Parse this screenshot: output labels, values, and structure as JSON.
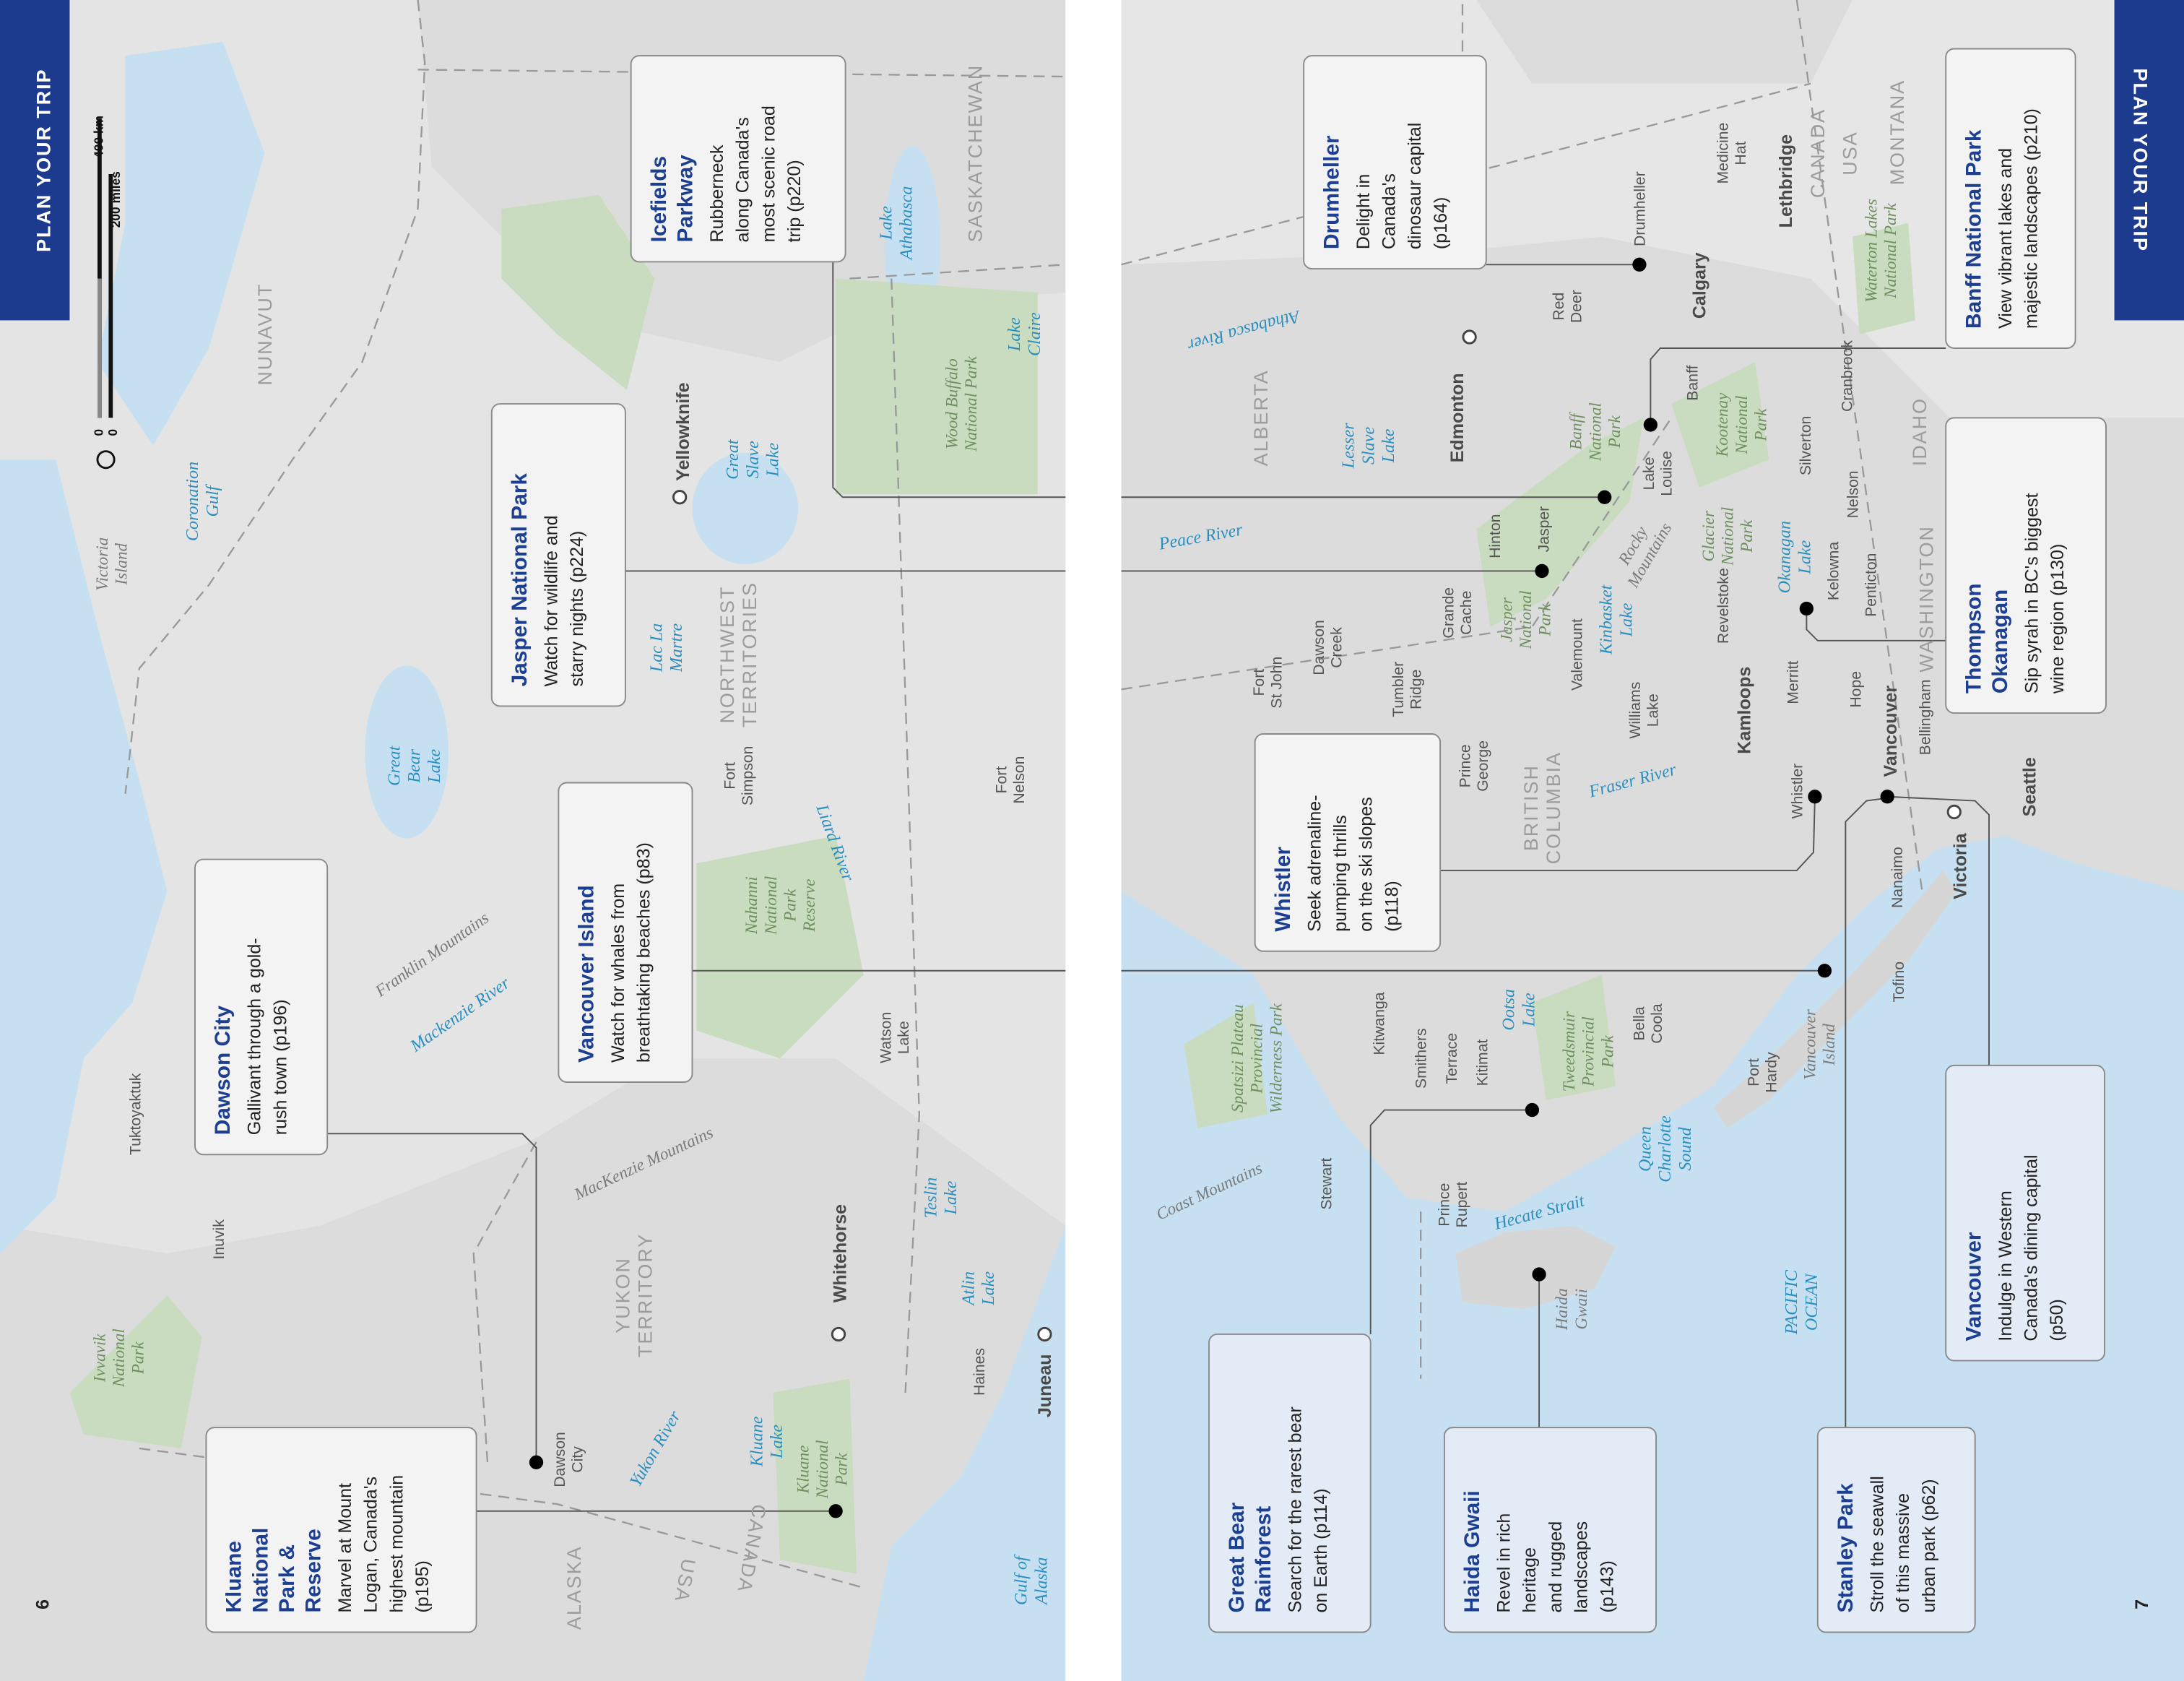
{
  "pages": [
    {
      "tab": "PLAN YOUR TRIP",
      "number": "6"
    },
    {
      "tab": "PLAN YOUR TRIP",
      "number": "7"
    }
  ],
  "scale": {
    "zero_km": "0",
    "km": "400 km",
    "zero_miles": "0",
    "miles": "200 miles"
  },
  "callouts": [
    {
      "title": [
        "Icefields",
        "Parkway"
      ],
      "text": [
        "Rubberneck",
        "along Canada's",
        "most scenic road",
        "trip (p220)"
      ]
    },
    {
      "title": [
        "Jasper National Park"
      ],
      "text": [
        "Watch for wildlife and",
        "starry nights (p224)"
      ]
    },
    {
      "title": [
        "Vancouver Island"
      ],
      "text": [
        "Watch for whales from",
        "breathtaking beaches (p83)"
      ]
    },
    {
      "title": [
        "Dawson City"
      ],
      "text": [
        "Gallivant through a gold-",
        "rush town (p196)"
      ]
    },
    {
      "title": [
        "Kluane",
        "National",
        "Park &",
        "Reserve"
      ],
      "text": [
        "Marvel at Mount",
        "Logan, Canada's",
        "highest mountain",
        "(p195)"
      ]
    },
    {
      "title": [
        "Drumheller"
      ],
      "text": [
        "Delight in",
        "Canada's",
        "dinosaur capital",
        "(p164)"
      ]
    },
    {
      "title": [
        "Banff National Park"
      ],
      "text": [
        "View vibrant lakes and",
        "majestic landscapes (p210)"
      ]
    },
    {
      "title": [
        "Thompson",
        "Okanagan"
      ],
      "text": [
        "Sip syrah in BC's biggest",
        "wine region (p130)"
      ]
    },
    {
      "title": [
        "Whistler"
      ],
      "text": [
        "Seek adrenaline-",
        "pumping thrills",
        "on the ski slopes",
        "(p118)"
      ]
    },
    {
      "title": [
        "Vancouver"
      ],
      "text": [
        "Indulge in Western",
        "Canada's dining capital",
        "(p50)"
      ]
    },
    {
      "title": [
        "Great Bear",
        "Rainforest"
      ],
      "text": [
        "Search for the rarest bear",
        "on Earth (p114)"
      ]
    },
    {
      "title": [
        "Haida Gwaii"
      ],
      "text": [
        "Revel in rich",
        "heritage",
        "and rugged",
        "landscapes",
        "(p143)"
      ]
    },
    {
      "title": [
        "Stanley Park"
      ],
      "text": [
        "Stroll the seawall",
        "of this massive",
        "urban park (p62)"
      ]
    }
  ],
  "places": [
    {
      "lines": [
        "Victoria",
        "Island"
      ]
    },
    {
      "lines": [
        "Coronation",
        "Gulf"
      ]
    },
    {
      "label": "NUNAVUT"
    },
    {
      "lines": [
        "Great",
        "Bear",
        "Lake"
      ]
    },
    {
      "label": "Franklin Mountains"
    },
    {
      "label": "Mackenzie River"
    },
    {
      "label": "Tuktoyaktuk"
    },
    {
      "label": "Inuvik"
    },
    {
      "label": "MacKenzie Mountains"
    },
    {
      "lines": [
        "Ivvavik",
        "National",
        "Park"
      ]
    },
    {
      "lines": [
        "YUKON",
        "TERRITORY"
      ]
    },
    {
      "label": "Whitehorse"
    },
    {
      "lines": [
        "Dawson",
        "City"
      ]
    },
    {
      "label": "Yukon River"
    },
    {
      "lines": [
        "Kluane",
        "Lake"
      ]
    },
    {
      "lines": [
        "Kluane",
        "National",
        "Park"
      ]
    },
    {
      "label": "ALASKA"
    },
    {
      "label": "CANADA"
    },
    {
      "label": "USA"
    },
    {
      "lines": [
        "Teslin",
        "Lake"
      ]
    },
    {
      "lines": [
        "Atlin",
        "Lake"
      ]
    },
    {
      "label": "Haines"
    },
    {
      "label": "Juneau"
    },
    {
      "lines": [
        "Gulf of",
        "Alaska"
      ]
    },
    {
      "lines": [
        "Watson",
        "Lake"
      ]
    },
    {
      "lines": [
        "Nahanni",
        "National",
        "Park",
        "Reserve"
      ]
    },
    {
      "label": "Liard River"
    },
    {
      "lines": [
        "Fort",
        "Simpson"
      ]
    },
    {
      "lines": [
        "NORTHWEST",
        "TERRITORIES"
      ]
    },
    {
      "lines": [
        "Lac La",
        "Martre"
      ]
    },
    {
      "lines": [
        "Great",
        "Slave",
        "Lake"
      ]
    },
    {
      "label": "Yellowknife"
    },
    {
      "lines": [
        "Wood Buffalo",
        "National Park"
      ]
    },
    {
      "lines": [
        "Lake",
        "Claire"
      ]
    },
    {
      "lines": [
        "Lake",
        "Athabasca"
      ]
    },
    {
      "label": "SASKATCHEWAN"
    },
    {
      "lines": [
        "Fort",
        "Nelson"
      ]
    },
    {
      "label": "Drumheller"
    },
    {
      "lines": [
        "Medicine",
        "Hat"
      ]
    },
    {
      "label": "Lethbridge"
    },
    {
      "lines": [
        "Red",
        "Deer"
      ]
    },
    {
      "label": "Calgary"
    },
    {
      "label": "CANADA"
    },
    {
      "label": "USA"
    },
    {
      "label": "MONTANA"
    },
    {
      "lines": [
        "Waterton Lakes",
        "National Park"
      ]
    },
    {
      "label": "ALBERTA"
    },
    {
      "label": "Athabasca River"
    },
    {
      "label": "Edmonton"
    },
    {
      "lines": [
        "Lesser",
        "Slave",
        "Lake"
      ]
    },
    {
      "lines": [
        "Banff",
        "National",
        "Park"
      ]
    },
    {
      "label": "Banff"
    },
    {
      "lines": [
        "Lake",
        "Louise"
      ]
    },
    {
      "lines": [
        "Kootenay",
        "National",
        "Park"
      ]
    },
    {
      "label": "Cranbrook"
    },
    {
      "label": "Silverton"
    },
    {
      "label": "Nelson"
    },
    {
      "label": "IDAHO"
    },
    {
      "label": "Peace River"
    },
    {
      "label": "Hinton"
    },
    {
      "label": "Jasper"
    },
    {
      "lines": [
        "Rocky",
        "Mountains"
      ]
    },
    {
      "lines": [
        "Glacier",
        "National",
        "Park"
      ]
    },
    {
      "lines": [
        "Okanagan",
        "Lake"
      ]
    },
    {
      "label": "Kelowna"
    },
    {
      "label": "Penticton"
    },
    {
      "label": "WASHINGTON"
    },
    {
      "label": "Revelstoke"
    },
    {
      "lines": [
        "Kinbasket",
        "Lake"
      ]
    },
    {
      "lines": [
        "Jasper",
        "National",
        "Park"
      ]
    },
    {
      "label": "Valemount"
    },
    {
      "lines": [
        "Grande",
        "Cache"
      ]
    },
    {
      "lines": [
        "Dawson",
        "Creek"
      ]
    },
    {
      "lines": [
        "Fort",
        "St John"
      ]
    },
    {
      "lines": [
        "Tumbler",
        "Ridge"
      ]
    },
    {
      "label": "Kamloops"
    },
    {
      "label": "Merritt"
    },
    {
      "label": "Hope"
    },
    {
      "lines": [
        "Williams",
        "Lake"
      ]
    },
    {
      "lines": [
        "Prince",
        "George"
      ]
    },
    {
      "lines": [
        "BRITISH",
        "COLUMBIA"
      ]
    },
    {
      "label": "Fraser River"
    },
    {
      "label": "Whistler"
    },
    {
      "label": "Vancouver"
    },
    {
      "label": "Bellingham"
    },
    {
      "label": "Seattle"
    },
    {
      "label": "Victoria"
    },
    {
      "label": "Nanaimo"
    },
    {
      "label": "Tofino"
    },
    {
      "lines": [
        "Spatsizi Plateau",
        "Provincial",
        "Wilderness Park"
      ]
    },
    {
      "label": "Kitwanga"
    },
    {
      "label": "Smithers"
    },
    {
      "label": "Terrace"
    },
    {
      "label": "Kitimat"
    },
    {
      "lines": [
        "Ootsa",
        "Lake"
      ]
    },
    {
      "lines": [
        "Tweedsmuir",
        "Provincial",
        "Park"
      ]
    },
    {
      "lines": [
        "Bella",
        "Coola"
      ]
    },
    {
      "lines": [
        "Port",
        "Hardy"
      ]
    },
    {
      "lines": [
        "Vancouver",
        "Island"
      ]
    },
    {
      "label": "Stewart"
    },
    {
      "label": "Coast Mountains"
    },
    {
      "lines": [
        "Prince",
        "Rupert"
      ]
    },
    {
      "label": "Hecate Strait"
    },
    {
      "lines": [
        "Queen",
        "Charlotte",
        "Sound"
      ]
    },
    {
      "lines": [
        "Haida",
        "Gwaii"
      ]
    },
    {
      "lines": [
        "PACIFIC",
        "OCEAN"
      ]
    }
  ]
}
